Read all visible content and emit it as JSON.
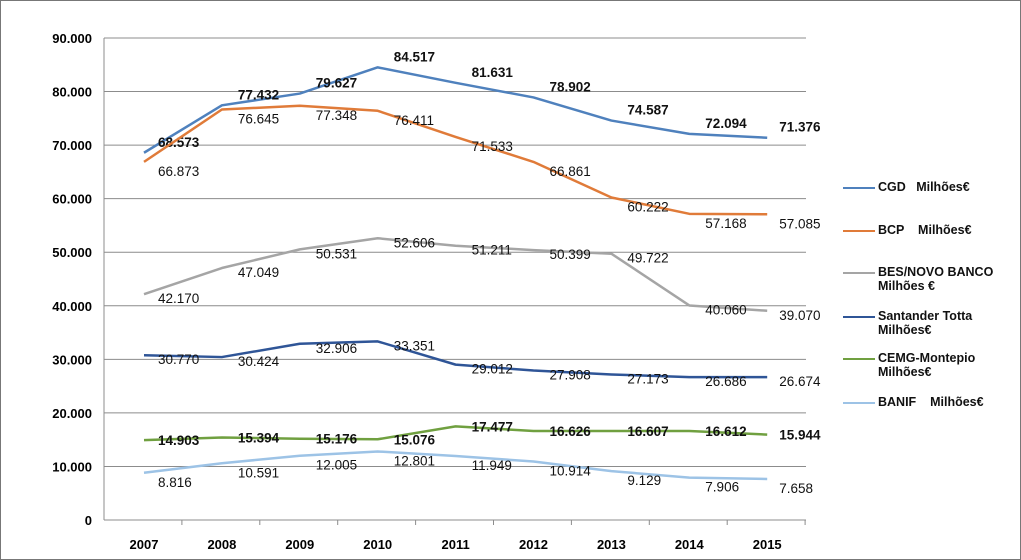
{
  "chart_data": {
    "type": "line",
    "title": "",
    "xlabel": "",
    "ylabel": "",
    "categories": [
      "2007",
      "2008",
      "2009",
      "2010",
      "2011",
      "2012",
      "2013",
      "2014",
      "2015"
    ],
    "ylim": [
      0,
      90000
    ],
    "yticks": [
      0,
      10000,
      20000,
      30000,
      40000,
      50000,
      60000,
      70000,
      80000,
      90000
    ],
    "ytick_labels": [
      "0",
      "10.000",
      "20.000",
      "30.000",
      "40.000",
      "50.000",
      "60.000",
      "70.000",
      "80.000",
      "90.000"
    ],
    "grid": true,
    "legend_position": "right",
    "series": [
      {
        "name": "CGD   Milhões€",
        "color": "#4f81bd",
        "bold": true,
        "values": [
          68573,
          77432,
          79627,
          84517,
          81631,
          78902,
          74587,
          72094,
          71376
        ],
        "labels": [
          "68.573",
          "77.432",
          "79.627",
          "84.517",
          "81.631",
          "78.902",
          "74.587",
          "72.094",
          "71.376"
        ]
      },
      {
        "name": "BCP    Milhões€",
        "color": "#e07b39",
        "bold": false,
        "values": [
          66873,
          76645,
          77348,
          76411,
          71533,
          66861,
          60222,
          57168,
          57085
        ],
        "labels": [
          "66.873",
          "76.645",
          "77.348",
          "76.411",
          "71.533",
          "66.861",
          "60.222",
          "57.168",
          "57.085"
        ]
      },
      {
        "name": "BES/NOVO BANCO   Milhões €",
        "color": "#a5a5a5",
        "bold": false,
        "values": [
          42170,
          47049,
          50531,
          52606,
          51211,
          50399,
          49722,
          40060,
          39070
        ],
        "labels": [
          "42.170",
          "47.049",
          "50.531",
          "52.606",
          "51.211",
          "50.399",
          "49.722",
          "40.060",
          "39.070"
        ]
      },
      {
        "name": "Santander Totta Milhões€",
        "color": "#2f5597",
        "bold": false,
        "values": [
          30770,
          30424,
          32906,
          33351,
          29012,
          27908,
          27173,
          26686,
          26674
        ],
        "labels": [
          "30.770",
          "30.424",
          "32.906",
          "33.351",
          "29.012",
          "27.908",
          "27.173",
          "26.686",
          "26.674"
        ]
      },
      {
        "name": "CEMG-Montepio Milhões€",
        "color": "#70a040",
        "bold": true,
        "values": [
          14903,
          15394,
          15176,
          15076,
          17477,
          16626,
          16607,
          16612,
          15944
        ],
        "labels": [
          "14.903",
          "15.394",
          "15.176",
          "15.076",
          "17.477",
          "16.626",
          "16.607",
          "16.612",
          "15.944"
        ]
      },
      {
        "name": "BANIF    Milhões€",
        "color": "#9dc3e6",
        "bold": false,
        "values": [
          8816,
          10591,
          12005,
          12801,
          11949,
          10914,
          9129,
          7906,
          7658
        ],
        "labels": [
          "8.816",
          "10.591",
          "12.005",
          "12.801",
          "11.949",
          "10.914",
          "9.129",
          "7.906",
          "7.658"
        ]
      }
    ]
  }
}
